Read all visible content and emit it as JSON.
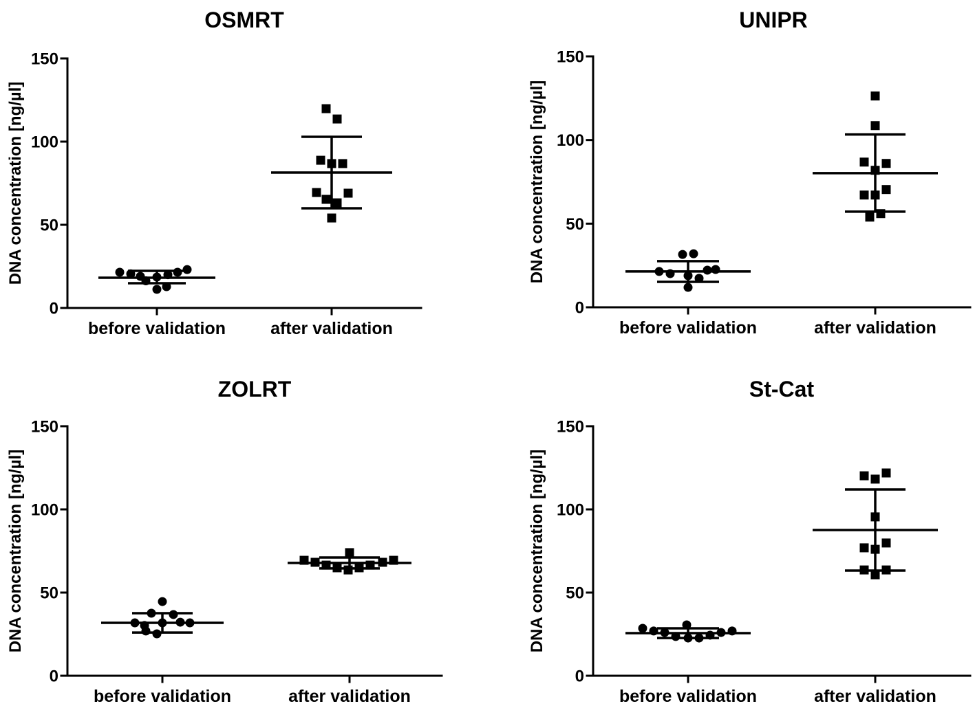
{
  "chart_data": [
    {
      "type": "scatter",
      "title": "OSMRT",
      "xlabel": "",
      "ylabel": "DNA concentration [ng/µl]",
      "ylim": [
        0,
        150
      ],
      "yticks": [
        0,
        50,
        100,
        150
      ],
      "grid": false,
      "categories": [
        "before validation",
        "after validation"
      ],
      "series": [
        {
          "marker": "circle",
          "values": [
            21.5,
            20.5,
            19.0,
            16.3,
            18.6,
            11.2,
            12.8,
            20.0,
            21.5,
            23.1
          ],
          "mean": 18.2,
          "error_bar": [
            14.9,
            22.3
          ]
        },
        {
          "marker": "square",
          "values": [
            119.8,
            113.6,
            88.8,
            86.8,
            86.8,
            69.4,
            69.0,
            65.3,
            63.2,
            54.1
          ],
          "mean": 81.4,
          "error_bar": [
            59.9,
            102.9
          ]
        }
      ]
    },
    {
      "type": "scatter",
      "title": "UNIPR",
      "xlabel": "",
      "ylabel": "DNA concentration [ng/µl]",
      "ylim": [
        0,
        150
      ],
      "yticks": [
        0,
        50,
        100,
        150
      ],
      "grid": false,
      "categories": [
        "before validation",
        "after validation"
      ],
      "series": [
        {
          "marker": "circle",
          "values": [
            31.6,
            32.0,
            21.4,
            20.1,
            18.9,
            17.3,
            22.2,
            22.6,
            11.9
          ],
          "mean": 21.4,
          "error_bar": [
            15.2,
            27.6
          ]
        },
        {
          "marker": "square",
          "values": [
            126.3,
            108.6,
            86.8,
            86.0,
            81.9,
            70.4,
            67.1,
            67.1,
            53.9,
            56.0
          ],
          "mean": 80.2,
          "error_bar": [
            57.2,
            103.3
          ]
        }
      ]
    },
    {
      "type": "scatter",
      "title": "ZOLRT",
      "xlabel": "",
      "ylabel": "DNA concentration [ng/µl]",
      "ylim": [
        0,
        150
      ],
      "yticks": [
        0,
        50,
        100,
        150
      ],
      "grid": false,
      "categories": [
        "before validation",
        "after validation"
      ],
      "series": [
        {
          "marker": "circle",
          "values": [
            44.6,
            37.6,
            36.8,
            31.8,
            30.2,
            31.8,
            32.2,
            31.8,
            26.9,
            25.2
          ],
          "mean": 31.8,
          "error_bar": [
            26.0,
            37.6
          ]
        },
        {
          "marker": "square",
          "values": [
            74.0,
            69.4,
            69.4,
            68.2,
            66.5,
            64.9,
            63.6,
            64.9,
            66.5,
            68.2
          ],
          "mean": 67.8,
          "error_bar": [
            64.5,
            71.1
          ]
        }
      ]
    },
    {
      "type": "scatter",
      "title": "St-Cat",
      "xlabel": "",
      "ylabel": "DNA concentration [ng/µl]",
      "ylim": [
        0,
        150
      ],
      "yticks": [
        0,
        50,
        100,
        150
      ],
      "grid": false,
      "categories": [
        "before validation",
        "after validation"
      ],
      "series": [
        {
          "marker": "circle",
          "values": [
            28.5,
            26.9,
            26.0,
            23.6,
            30.6,
            22.7,
            22.7,
            24.4,
            26.0,
            26.9
          ],
          "mean": 25.6,
          "error_bar": [
            22.7,
            28.5
          ]
        },
        {
          "marker": "square",
          "values": [
            120.2,
            118.2,
            121.9,
            95.5,
            76.9,
            76.0,
            79.8,
            63.6,
            60.7,
            63.6
          ],
          "mean": 87.6,
          "error_bar": [
            63.2,
            112.0
          ]
        }
      ]
    }
  ]
}
